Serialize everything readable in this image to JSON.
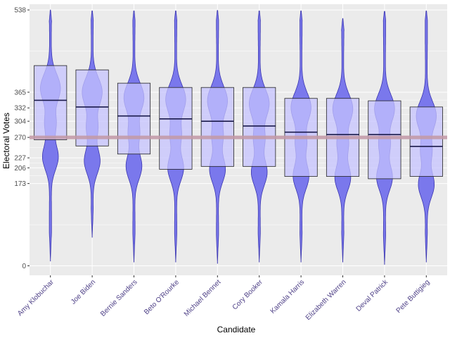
{
  "chart_data": {
    "type": "violin",
    "xlabel": "Candidate",
    "ylabel": "Electoral Votes",
    "ylim": [
      -20,
      550
    ],
    "yticks": [
      0,
      173,
      206,
      227,
      270,
      304,
      332,
      365,
      538
    ],
    "reference_line": 270,
    "grid": true,
    "colors": {
      "panel": "#ebebeb",
      "grid": "#ffffff",
      "violin_fill": "#7a78ec",
      "violin_stroke": "#3b36b0",
      "box_fill": "#c5c3ff",
      "box_stroke": "#222222",
      "median": "#1a1a4a",
      "reference_line": "#c29aa8",
      "tick_text": "#4d3f86"
    },
    "categories": [
      "Amy Klobuchar",
      "Joe Biden",
      "Bernie Sanders",
      "Beto O'Rourke",
      "Michael Bennet",
      "Cory Booker",
      "Kamala Harris",
      "Elizabeth Warren",
      "Deval Patrick",
      "Pete Buttigieg"
    ],
    "boxes": [
      {
        "q1": 265,
        "median": 348,
        "q3": 421,
        "min": 10,
        "max": 538
      },
      {
        "q1": 252,
        "median": 334,
        "q3": 412,
        "min": 60,
        "max": 538
      },
      {
        "q1": 235,
        "median": 315,
        "q3": 384,
        "min": 8,
        "max": 538
      },
      {
        "q1": 203,
        "median": 309,
        "q3": 375,
        "min": 8,
        "max": 538
      },
      {
        "q1": 209,
        "median": 304,
        "q3": 375,
        "min": 5,
        "max": 538
      },
      {
        "q1": 209,
        "median": 294,
        "q3": 375,
        "min": 8,
        "max": 538
      },
      {
        "q1": 188,
        "median": 281,
        "q3": 352,
        "min": 8,
        "max": 538
      },
      {
        "q1": 188,
        "median": 276,
        "q3": 352,
        "min": 8,
        "max": 520
      },
      {
        "q1": 183,
        "median": 276,
        "q3": 347,
        "min": 3,
        "max": 538
      },
      {
        "q1": 188,
        "median": 251,
        "q3": 334,
        "min": 8,
        "max": 538
      }
    ]
  }
}
